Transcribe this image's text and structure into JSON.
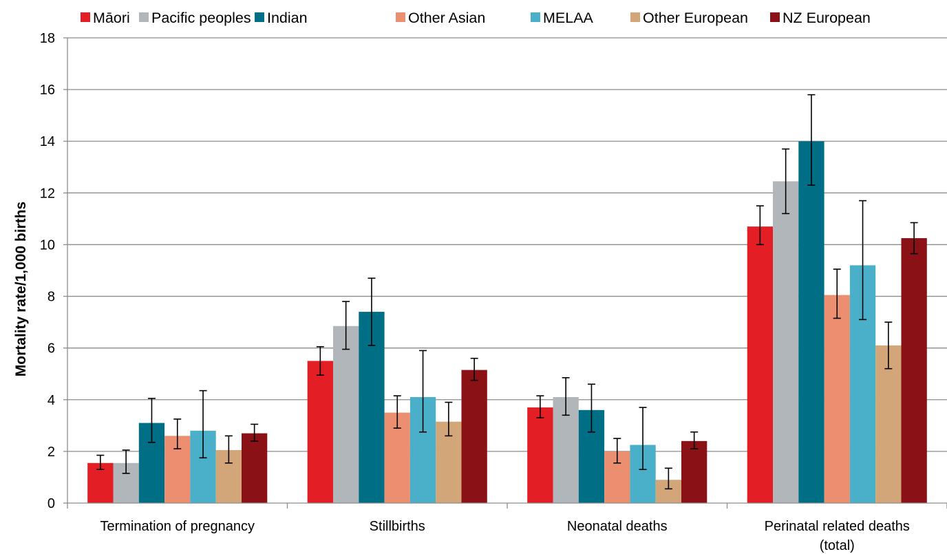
{
  "chart_data": {
    "type": "bar",
    "title": "",
    "xlabel": "",
    "ylabel": "Mortality rate/1,000 births",
    "ylim": [
      0,
      18
    ],
    "yticks": [
      0,
      2,
      4,
      6,
      8,
      10,
      12,
      14,
      16,
      18
    ],
    "grid": true,
    "legend_position": "top",
    "error_bars": true,
    "categories": [
      [
        "Termination of pregnancy"
      ],
      [
        "Stillbirths"
      ],
      [
        "Neonatal deaths"
      ],
      [
        "Perinatal related deaths",
        "(total)"
      ]
    ],
    "series": [
      {
        "name": "Māori",
        "color": "#e31e24",
        "values": [
          1.55,
          5.5,
          3.7,
          10.7
        ],
        "ci_low": [
          1.3,
          4.95,
          3.3,
          10.0
        ],
        "ci_high": [
          1.85,
          6.05,
          4.15,
          11.5
        ]
      },
      {
        "name": "Pacific peoples",
        "color": "#b1b6bb",
        "values": [
          1.55,
          6.85,
          4.1,
          12.45
        ],
        "ci_low": [
          1.15,
          5.95,
          3.4,
          11.2
        ],
        "ci_high": [
          2.05,
          7.8,
          4.85,
          13.7
        ]
      },
      {
        "name": "Indian",
        "color": "#006e84",
        "values": [
          3.1,
          7.4,
          3.6,
          14.0
        ],
        "ci_low": [
          2.35,
          6.1,
          2.75,
          12.3
        ],
        "ci_high": [
          4.05,
          8.7,
          4.6,
          15.8
        ]
      },
      {
        "name": "Other Asian",
        "color": "#ec8f70",
        "values": [
          2.6,
          3.5,
          2.0,
          8.05
        ],
        "ci_low": [
          2.1,
          2.9,
          1.55,
          7.15
        ],
        "ci_high": [
          3.25,
          4.15,
          2.5,
          9.05
        ]
      },
      {
        "name": "MELAA",
        "color": "#4aafc8",
        "values": [
          2.8,
          4.1,
          2.25,
          9.2
        ],
        "ci_low": [
          1.75,
          2.75,
          1.3,
          7.1
        ],
        "ci_high": [
          4.35,
          5.9,
          3.7,
          11.7
        ]
      },
      {
        "name": "Other European",
        "color": "#d3a679",
        "values": [
          2.05,
          3.15,
          0.9,
          6.1
        ],
        "ci_low": [
          1.55,
          2.6,
          0.55,
          5.2
        ],
        "ci_high": [
          2.6,
          3.9,
          1.35,
          7.0
        ]
      },
      {
        "name": "NZ European",
        "color": "#8a1217",
        "values": [
          2.7,
          5.15,
          2.4,
          10.25
        ],
        "ci_low": [
          2.4,
          4.75,
          2.1,
          9.65
        ],
        "ci_high": [
          3.05,
          5.6,
          2.75,
          10.85
        ]
      }
    ]
  }
}
